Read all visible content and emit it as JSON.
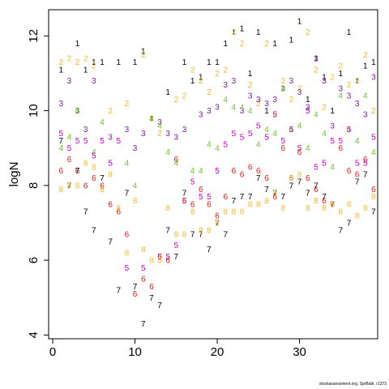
{
  "credit": "stockassessment.org, SprBaltr, r1373",
  "chart_data": {
    "type": "scatter",
    "ylabel": "logN",
    "xlabel": "",
    "title": "",
    "xlim": [
      -0.5,
      39.5
    ],
    "ylim": [
      3.9,
      12.7
    ],
    "x_ticks": [
      0,
      10,
      20,
      30
    ],
    "y_ticks": [
      4,
      6,
      8,
      10,
      12
    ],
    "grid": false,
    "legend": "none",
    "series": [
      {
        "label": "1",
        "color": "#000000",
        "x": [
          1,
          3,
          4,
          5,
          6,
          8,
          10,
          11,
          12,
          14,
          16,
          17,
          18,
          19,
          20,
          21,
          22,
          23,
          24,
          25,
          26,
          27,
          29,
          30,
          31,
          32,
          33,
          34,
          35,
          36,
          37,
          38,
          39
        ],
        "y": [
          11.1,
          11.8,
          11.1,
          11.3,
          11.3,
          11.3,
          11.3,
          11.6,
          9.8,
          10.5,
          11.3,
          10.8,
          10.9,
          11.3,
          11.3,
          11.8,
          12.1,
          12.2,
          11.0,
          12.1,
          10.0,
          11.8,
          11.9,
          12.4,
          10.3,
          11.4,
          10.9,
          10.0,
          11.0,
          12.1,
          10.8,
          11.2,
          11.3
        ]
      },
      {
        "label": "2",
        "color": "#F5B92E",
        "x": [
          1,
          2,
          3,
          4,
          5,
          7,
          9,
          11,
          12,
          13,
          15,
          16,
          17,
          18,
          19,
          20,
          21,
          22,
          23,
          24,
          25,
          26,
          27,
          28,
          29,
          30,
          31,
          32,
          33,
          34,
          35,
          36,
          37,
          38,
          39
        ],
        "y": [
          11.3,
          11.4,
          11.3,
          11.4,
          11.2,
          10.0,
          10.2,
          11.5,
          9.8,
          9.4,
          10.3,
          10.4,
          11.1,
          10.8,
          10.5,
          11.0,
          11.1,
          12.1,
          11.8,
          10.7,
          10.2,
          11.8,
          9.9,
          10.8,
          10.3,
          10.6,
          12.1,
          11.1,
          10.1,
          10.9,
          11.2,
          10.7,
          10.8,
          11.5,
          10.0
        ]
      },
      {
        "label": "3",
        "color": "#7F1C96",
        "x": [
          1,
          2,
          3,
          4,
          5,
          7,
          9,
          10,
          11,
          13,
          14,
          15,
          16,
          18,
          19,
          20,
          21,
          22,
          23,
          24,
          25,
          26,
          27,
          28,
          29,
          30,
          31,
          32,
          33,
          34,
          35,
          36,
          37,
          38,
          39
        ],
        "y": [
          10.2,
          10.8,
          10.0,
          9.5,
          10.8,
          9.3,
          9.5,
          9.0,
          9.4,
          9.7,
          9.4,
          9.3,
          9.5,
          9.9,
          10.0,
          10.1,
          10.7,
          10.8,
          10.0,
          10.4,
          10.3,
          10.2,
          10.3,
          10.6,
          10.8,
          10.5,
          10.1,
          11.4,
          10.8,
          9.6,
          10.6,
          10.4,
          10.2,
          9.9,
          10.9
        ]
      },
      {
        "label": "4",
        "color": "#6CC531",
        "x": [
          1,
          2,
          3,
          5,
          6,
          9,
          10,
          12,
          13,
          14,
          15,
          17,
          18,
          19,
          20,
          21,
          22,
          23,
          24,
          25,
          26,
          27,
          28,
          29,
          30,
          31,
          32,
          33,
          34,
          35,
          36,
          37,
          38,
          39
        ],
        "y": [
          9.0,
          9.3,
          10.0,
          8.9,
          9.7,
          8.6,
          8.0,
          9.8,
          9.6,
          8.9,
          8.6,
          8.4,
          8.4,
          9.1,
          9.0,
          10.3,
          10.1,
          10.1,
          10.0,
          9.1,
          9.5,
          9.4,
          10.6,
          9.5,
          9.6,
          9.0,
          9.9,
          9.4,
          8.5,
          10.4,
          9.5,
          9.2,
          10.4,
          8.9
        ]
      },
      {
        "label": "5",
        "color": "#C800C8",
        "x": [
          1,
          2,
          3,
          4,
          5,
          6,
          7,
          8,
          9,
          11,
          13,
          14,
          15,
          16,
          17,
          18,
          19,
          20,
          21,
          22,
          23,
          24,
          25,
          26,
          27,
          28,
          29,
          30,
          31,
          32,
          33,
          34,
          35,
          36,
          37,
          38,
          39
        ],
        "y": [
          9.4,
          9.0,
          9.2,
          9.2,
          8.8,
          9.2,
          8.6,
          9.2,
          5.8,
          5.8,
          6.1,
          6.1,
          6.4,
          7.6,
          8.1,
          7.7,
          7.7,
          8.4,
          9.1,
          9.4,
          9.3,
          9.4,
          9.6,
          9.3,
          9.9,
          9.2,
          9.5,
          9.0,
          10.0,
          8.5,
          8.6,
          9.2,
          9.2,
          9.5,
          8.6,
          8.6,
          9.3
        ]
      },
      {
        "label": "6",
        "color": "#E01818",
        "x": [
          1,
          2,
          3,
          4,
          5,
          6,
          7,
          8,
          9,
          10,
          11,
          12,
          13,
          14,
          15,
          16,
          17,
          18,
          19,
          20,
          21,
          22,
          23,
          24,
          25,
          26,
          27,
          28,
          29,
          30,
          31,
          32,
          33,
          34,
          35,
          36,
          37,
          38,
          39
        ],
        "y": [
          8.4,
          8.7,
          8.4,
          8.0,
          8.2,
          8.0,
          7.5,
          7.3,
          6.7,
          5.1,
          5.5,
          5.3,
          6.1,
          6.0,
          8.7,
          7.6,
          7.5,
          7.9,
          7.5,
          7.2,
          7.7,
          8.4,
          8.3,
          8.5,
          8.4,
          8.2,
          7.7,
          9.0,
          8.2,
          8.9,
          8.2,
          7.9,
          7.6,
          7.5,
          9.0,
          8.4,
          8.3,
          8.7,
          7.9
        ]
      },
      {
        "label": "7",
        "color": "#000000",
        "x": [
          1,
          2,
          3,
          4,
          5,
          6,
          7,
          8,
          9,
          10,
          11,
          12,
          13,
          14,
          15,
          16,
          17,
          18,
          19,
          20,
          21,
          22,
          23,
          24,
          25,
          26,
          27,
          28,
          29,
          30,
          31,
          32,
          33,
          34,
          35,
          36,
          37,
          38,
          39
        ],
        "y": [
          9.2,
          8.0,
          8.4,
          7.3,
          6.8,
          8.2,
          6.5,
          5.2,
          7.8,
          5.3,
          4.3,
          5.0,
          4.8,
          6.8,
          6.1,
          7.8,
          6.7,
          6.7,
          6.3,
          7.0,
          6.7,
          7.6,
          7.7,
          7.7,
          8.2,
          7.9,
          7.8,
          7.7,
          8.0,
          8.1,
          7.8,
          8.0,
          7.7,
          7.5,
          6.8,
          7.0,
          8.1,
          8.3,
          7.3
        ]
      },
      {
        "label": "8",
        "color": "#F5B92E",
        "x": [
          1,
          2,
          3,
          4,
          5,
          6,
          7,
          8,
          9,
          10,
          11,
          12,
          13,
          14,
          15,
          16,
          17,
          18,
          19,
          20,
          21,
          22,
          23,
          24,
          25,
          26,
          27,
          28,
          29,
          30,
          31,
          32,
          33,
          34,
          35,
          36,
          37,
          38,
          39
        ],
        "y": [
          7.9,
          8.0,
          8.0,
          8.6,
          8.5,
          7.9,
          8.3,
          7.4,
          6.2,
          7.6,
          6.3,
          6.0,
          6.0,
          7.4,
          6.7,
          6.7,
          7.3,
          6.8,
          6.8,
          7.0,
          7.3,
          7.3,
          7.3,
          7.5,
          7.5,
          7.6,
          7.8,
          7.4,
          8.2,
          8.3,
          7.4,
          7.6,
          7.4,
          7.5,
          7.3,
          7.5,
          7.2,
          7.4,
          7.7
        ]
      }
    ]
  }
}
